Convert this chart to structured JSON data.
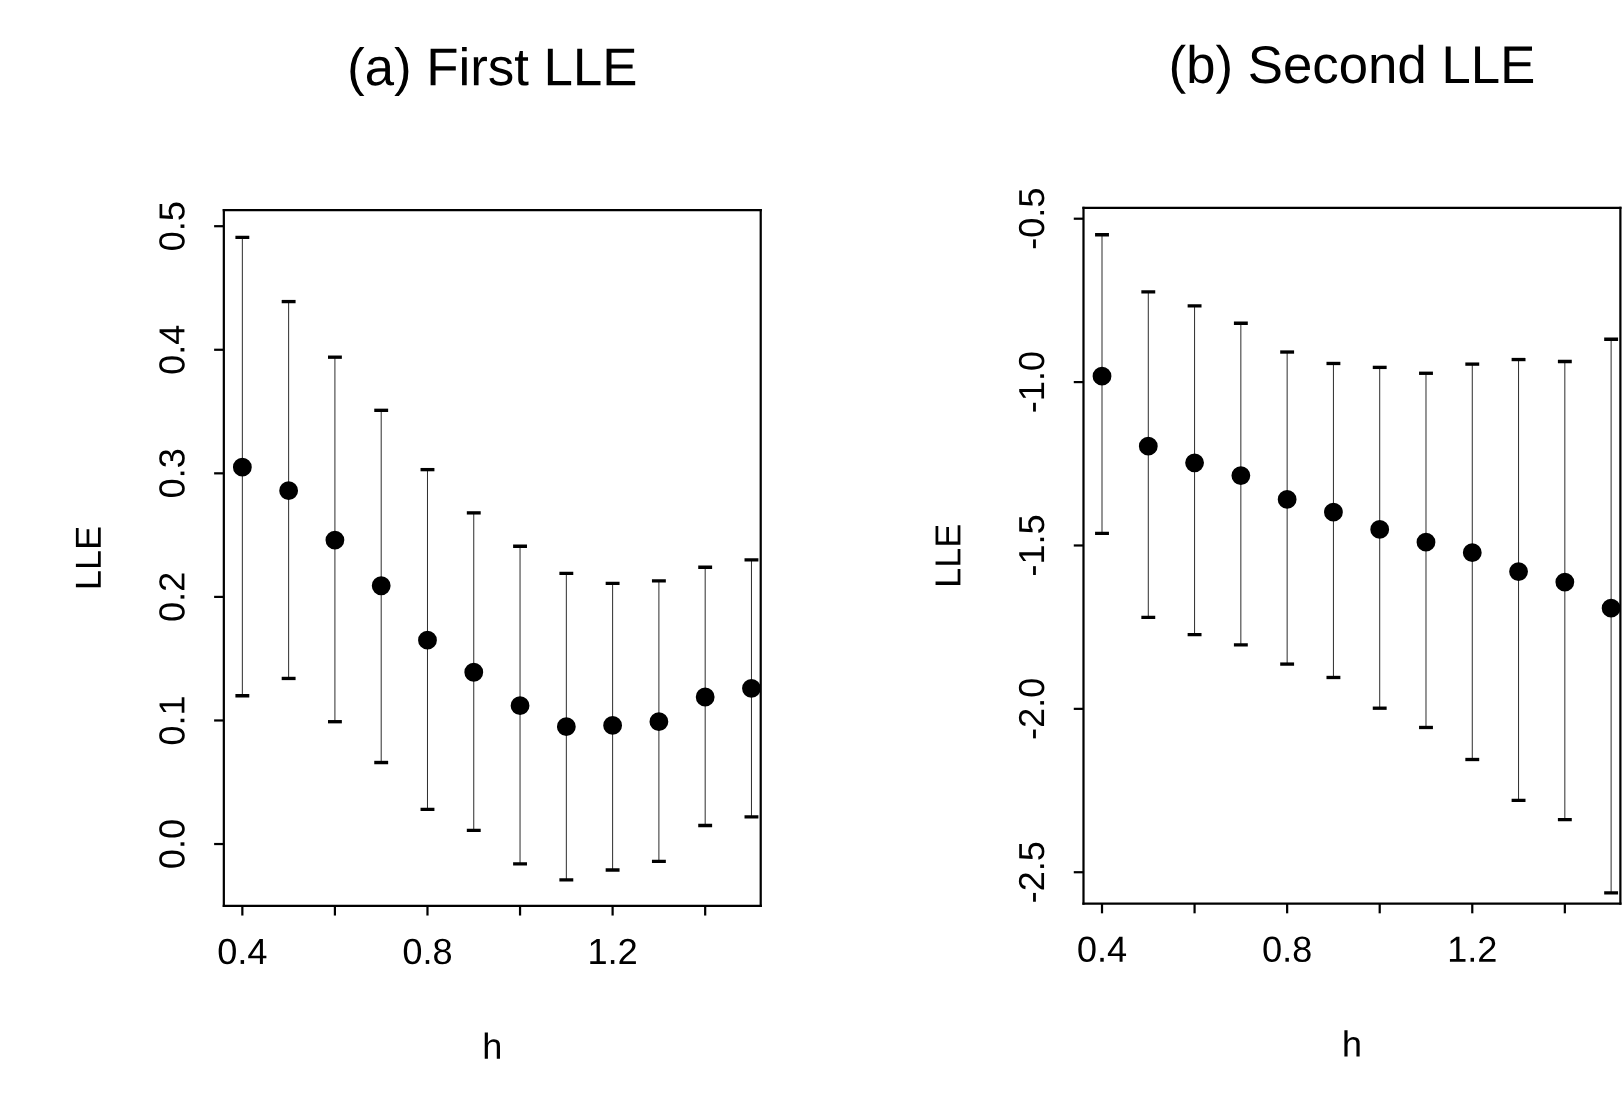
{
  "chart_data": [
    {
      "type": "scatter",
      "title": "(a) First LLE",
      "xlabel": "h",
      "ylabel": "LLE",
      "x": [
        0.4,
        0.5,
        0.6,
        0.7,
        0.8,
        0.9,
        1.0,
        1.1,
        1.2,
        1.3,
        1.4,
        1.5
      ],
      "series": [
        {
          "color": "#000000",
          "values": [
            0.305,
            0.286,
            0.246,
            0.209,
            0.165,
            0.139,
            0.112,
            0.095,
            0.096,
            0.099,
            0.119,
            0.126
          ],
          "errors": [
            [
              0.12,
              0.491
            ],
            [
              0.134,
              0.439
            ],
            [
              0.099,
              0.394
            ],
            [
              0.066,
              0.351
            ],
            [
              0.028,
              0.303
            ],
            [
              0.011,
              0.268
            ],
            [
              -0.016,
              0.241
            ],
            [
              -0.029,
              0.219
            ],
            [
              -0.021,
              0.211
            ],
            [
              -0.014,
              0.213
            ],
            [
              0.015,
              0.224
            ],
            [
              0.022,
              0.23
            ]
          ]
        }
      ],
      "marker": "circle",
      "grid": false,
      "xlim": [
        0.36,
        1.52
      ],
      "ylim": [
        -0.05,
        0.513
      ],
      "xticks": [
        0.4,
        {
          "value": 0.6,
          "label": null
        },
        0.8,
        {
          "value": 1.0,
          "label": null
        },
        1.2,
        {
          "value": 1.4,
          "label": null
        }
      ],
      "yticks": [
        {
          "value": 0.0,
          "label": "0.0"
        },
        0.1,
        0.2,
        0.3,
        0.4,
        0.5
      ]
    },
    {
      "type": "scatter",
      "title": "(b) Second LLE",
      "xlabel": "h",
      "ylabel": "LLE",
      "x": [
        0.4,
        0.5,
        0.6,
        0.7,
        0.8,
        0.9,
        1.0,
        1.1,
        1.2,
        1.3,
        1.4,
        1.5
      ],
      "series": [
        {
          "color": "#000000",
          "values": [
            -0.982,
            -1.196,
            -1.247,
            -1.286,
            -1.359,
            -1.398,
            -1.451,
            -1.49,
            -1.522,
            -1.58,
            -1.612,
            -1.692
          ],
          "errors": [
            [
              -1.463,
              -0.549
            ],
            [
              -1.72,
              -0.724
            ],
            [
              -1.773,
              -0.767
            ],
            [
              -1.804,
              -0.82
            ],
            [
              -1.863,
              -0.908
            ],
            [
              -1.904,
              -0.943
            ],
            [
              -1.998,
              -0.955
            ],
            [
              -2.057,
              -0.973
            ],
            [
              -2.155,
              -0.945
            ],
            [
              -2.28,
              -0.931
            ],
            [
              -2.339,
              -0.937
            ],
            [
              -2.563,
              -0.869
            ]
          ]
        }
      ],
      "marker": "circle",
      "grid": false,
      "xlim": [
        0.36,
        1.52
      ],
      "ylim": [
        -2.596,
        -0.467
      ],
      "xticks": [
        0.4,
        {
          "value": 0.6,
          "label": null
        },
        0.8,
        {
          "value": 1.0,
          "label": null
        },
        1.2,
        {
          "value": 1.4,
          "label": null
        }
      ],
      "yticks": [
        -2.5,
        {
          "value": -2.0,
          "label": "-2.0"
        },
        -1.5,
        {
          "value": -1.0,
          "label": "-1.0"
        },
        -0.5
      ]
    }
  ]
}
